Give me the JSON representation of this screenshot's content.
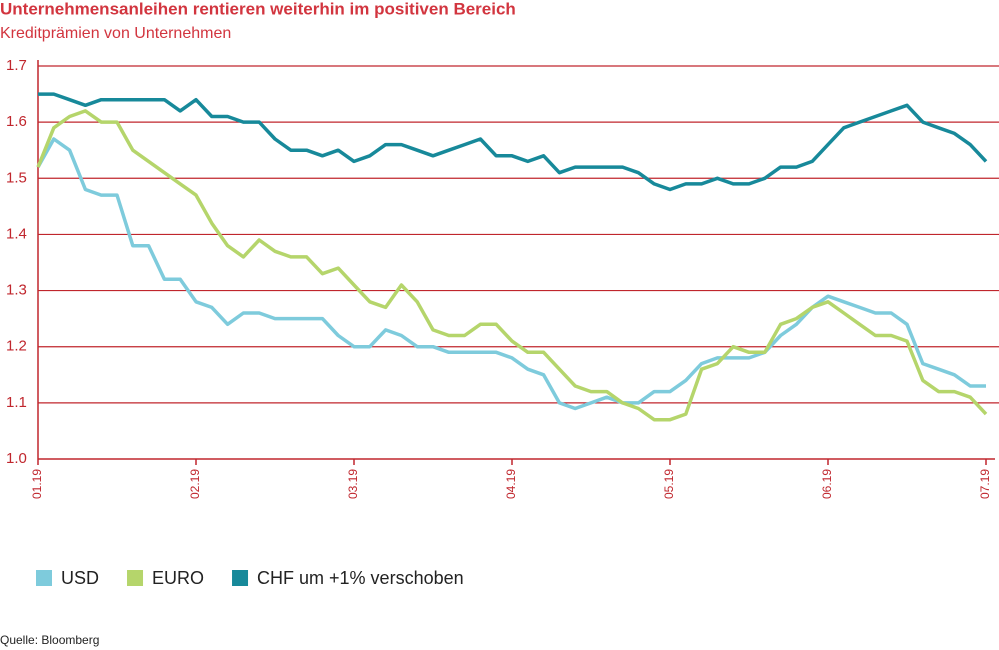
{
  "chart_data": {
    "type": "line",
    "title": "Unternehmensanleihen rentieren weiterhin im positiven Bereich",
    "subtitle": "Kreditprämien von Unternehmen",
    "source": "Quelle: Bloomberg",
    "categories": [
      "01.19",
      null,
      null,
      null,
      null,
      null,
      null,
      null,
      null,
      null,
      "02.19",
      null,
      null,
      null,
      null,
      null,
      null,
      null,
      null,
      null,
      "03.19",
      null,
      null,
      null,
      null,
      null,
      null,
      null,
      null,
      null,
      "04.19",
      null,
      null,
      null,
      null,
      null,
      null,
      null,
      null,
      null,
      "05.19",
      null,
      null,
      null,
      null,
      null,
      null,
      null,
      null,
      null,
      "06.19",
      null,
      null,
      null,
      null,
      null,
      null,
      null,
      null,
      null,
      "07.19"
    ],
    "series": [
      {
        "name": "USD",
        "color": "#7ecbdc",
        "values": [
          1.52,
          1.57,
          1.55,
          1.48,
          1.47,
          1.47,
          1.38,
          1.38,
          1.32,
          1.32,
          1.28,
          1.27,
          1.24,
          1.26,
          1.26,
          1.25,
          1.25,
          1.25,
          1.25,
          1.22,
          1.2,
          1.2,
          1.23,
          1.22,
          1.2,
          1.2,
          1.19,
          1.19,
          1.19,
          1.19,
          1.18,
          1.16,
          1.15,
          1.1,
          1.09,
          1.1,
          1.11,
          1.1,
          1.1,
          1.12,
          1.12,
          1.14,
          1.17,
          1.18,
          1.18,
          1.18,
          1.19,
          1.22,
          1.24,
          1.27,
          1.29,
          1.28,
          1.27,
          1.26,
          1.26,
          1.24,
          1.17,
          1.16,
          1.15,
          1.13,
          1.13
        ]
      },
      {
        "name": "EURO",
        "color": "#b5d56b",
        "values": [
          1.52,
          1.59,
          1.61,
          1.62,
          1.6,
          1.6,
          1.55,
          1.53,
          1.51,
          1.49,
          1.47,
          1.42,
          1.38,
          1.36,
          1.39,
          1.37,
          1.36,
          1.36,
          1.33,
          1.34,
          1.31,
          1.28,
          1.27,
          1.31,
          1.28,
          1.23,
          1.22,
          1.22,
          1.24,
          1.24,
          1.21,
          1.19,
          1.19,
          1.16,
          1.13,
          1.12,
          1.12,
          1.1,
          1.09,
          1.07,
          1.07,
          1.08,
          1.16,
          1.17,
          1.2,
          1.19,
          1.19,
          1.24,
          1.25,
          1.27,
          1.28,
          1.26,
          1.24,
          1.22,
          1.22,
          1.21,
          1.14,
          1.12,
          1.12,
          1.11,
          1.08
        ]
      },
      {
        "name": "CHF um +1% verschoben",
        "color": "#17899a",
        "values": [
          1.65,
          1.65,
          1.64,
          1.63,
          1.64,
          1.64,
          1.64,
          1.64,
          1.64,
          1.62,
          1.64,
          1.61,
          1.61,
          1.6,
          1.6,
          1.57,
          1.55,
          1.55,
          1.54,
          1.55,
          1.53,
          1.54,
          1.56,
          1.56,
          1.55,
          1.54,
          1.55,
          1.56,
          1.57,
          1.54,
          1.54,
          1.53,
          1.54,
          1.51,
          1.52,
          1.52,
          1.52,
          1.52,
          1.51,
          1.49,
          1.48,
          1.49,
          1.49,
          1.5,
          1.49,
          1.49,
          1.5,
          1.52,
          1.52,
          1.53,
          1.56,
          1.59,
          1.6,
          1.61,
          1.62,
          1.63,
          1.6,
          1.59,
          1.58,
          1.56,
          1.53
        ]
      }
    ],
    "ylim": [
      1,
      1.7
    ],
    "yticks": [
      {
        "value": 1,
        "label": "1.0"
      },
      1.1,
      1.2,
      1.3,
      1.4,
      1.5,
      1.6,
      1.7
    ],
    "grid": true,
    "legend": "bottom"
  }
}
